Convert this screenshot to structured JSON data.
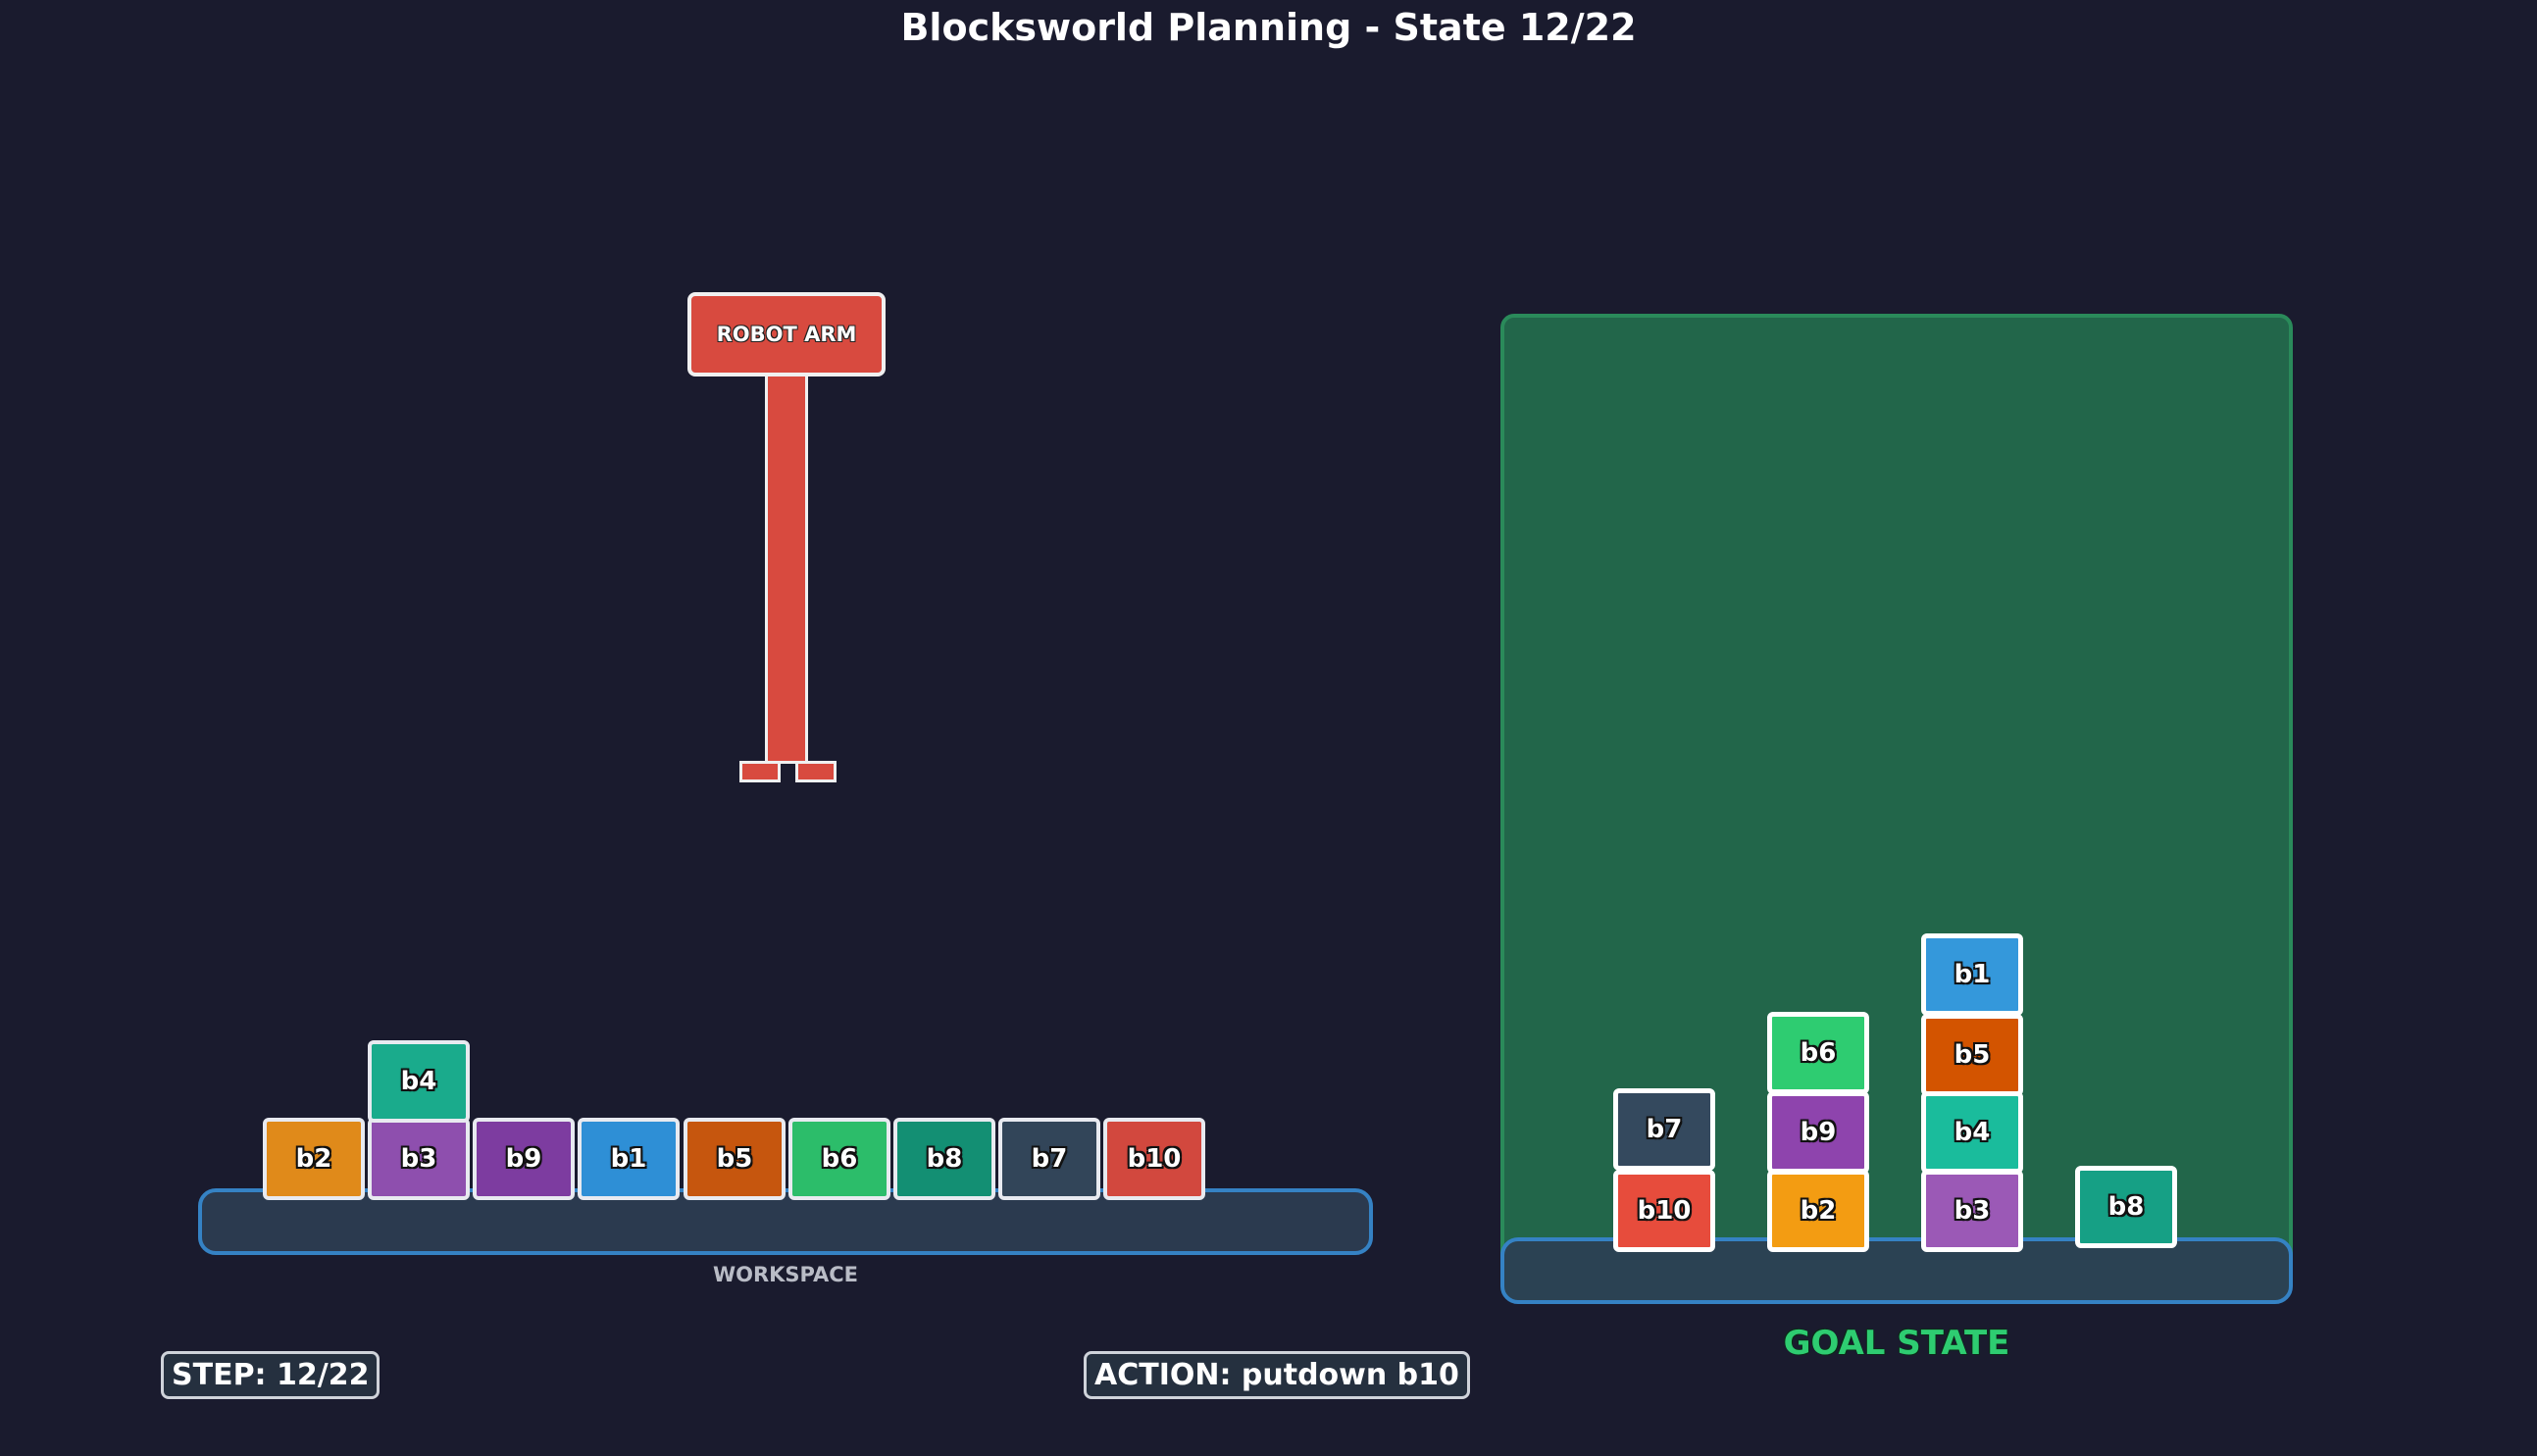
{
  "title": "Blocksworld Planning - State 12/22",
  "workspace": {
    "label": "WORKSPACE",
    "blocks": [
      {
        "name": "b2",
        "color": "#e08a1a"
      },
      {
        "name": "b3",
        "color": "#8e4fae"
      },
      {
        "name": "b4",
        "color": "#1aab8c"
      },
      {
        "name": "b9",
        "color": "#7d3ca0"
      },
      {
        "name": "b1",
        "color": "#2e8fd6"
      },
      {
        "name": "b5",
        "color": "#c6560e"
      },
      {
        "name": "b6",
        "color": "#2cbd6a"
      },
      {
        "name": "b8",
        "color": "#138f73"
      },
      {
        "name": "b7",
        "color": "#324559"
      },
      {
        "name": "b10",
        "color": "#d2483e"
      }
    ]
  },
  "robot_arm": {
    "label": "ROBOT ARM",
    "holding": ""
  },
  "goal": {
    "label": "GOAL STATE",
    "blocks": [
      {
        "name": "b10",
        "color": "#e74c3c"
      },
      {
        "name": "b7",
        "color": "#34495e"
      },
      {
        "name": "b2",
        "color": "#f39c12"
      },
      {
        "name": "b9",
        "color": "#8e44ad"
      },
      {
        "name": "b6",
        "color": "#2ecc71"
      },
      {
        "name": "b3",
        "color": "#9b59b6"
      },
      {
        "name": "b4",
        "color": "#1abc9c"
      },
      {
        "name": "b5",
        "color": "#d35400"
      },
      {
        "name": "b1",
        "color": "#3498db"
      },
      {
        "name": "b8",
        "color": "#16a085"
      }
    ]
  },
  "status": {
    "step": "STEP: 12/22",
    "action": "ACTION: putdown b10"
  }
}
